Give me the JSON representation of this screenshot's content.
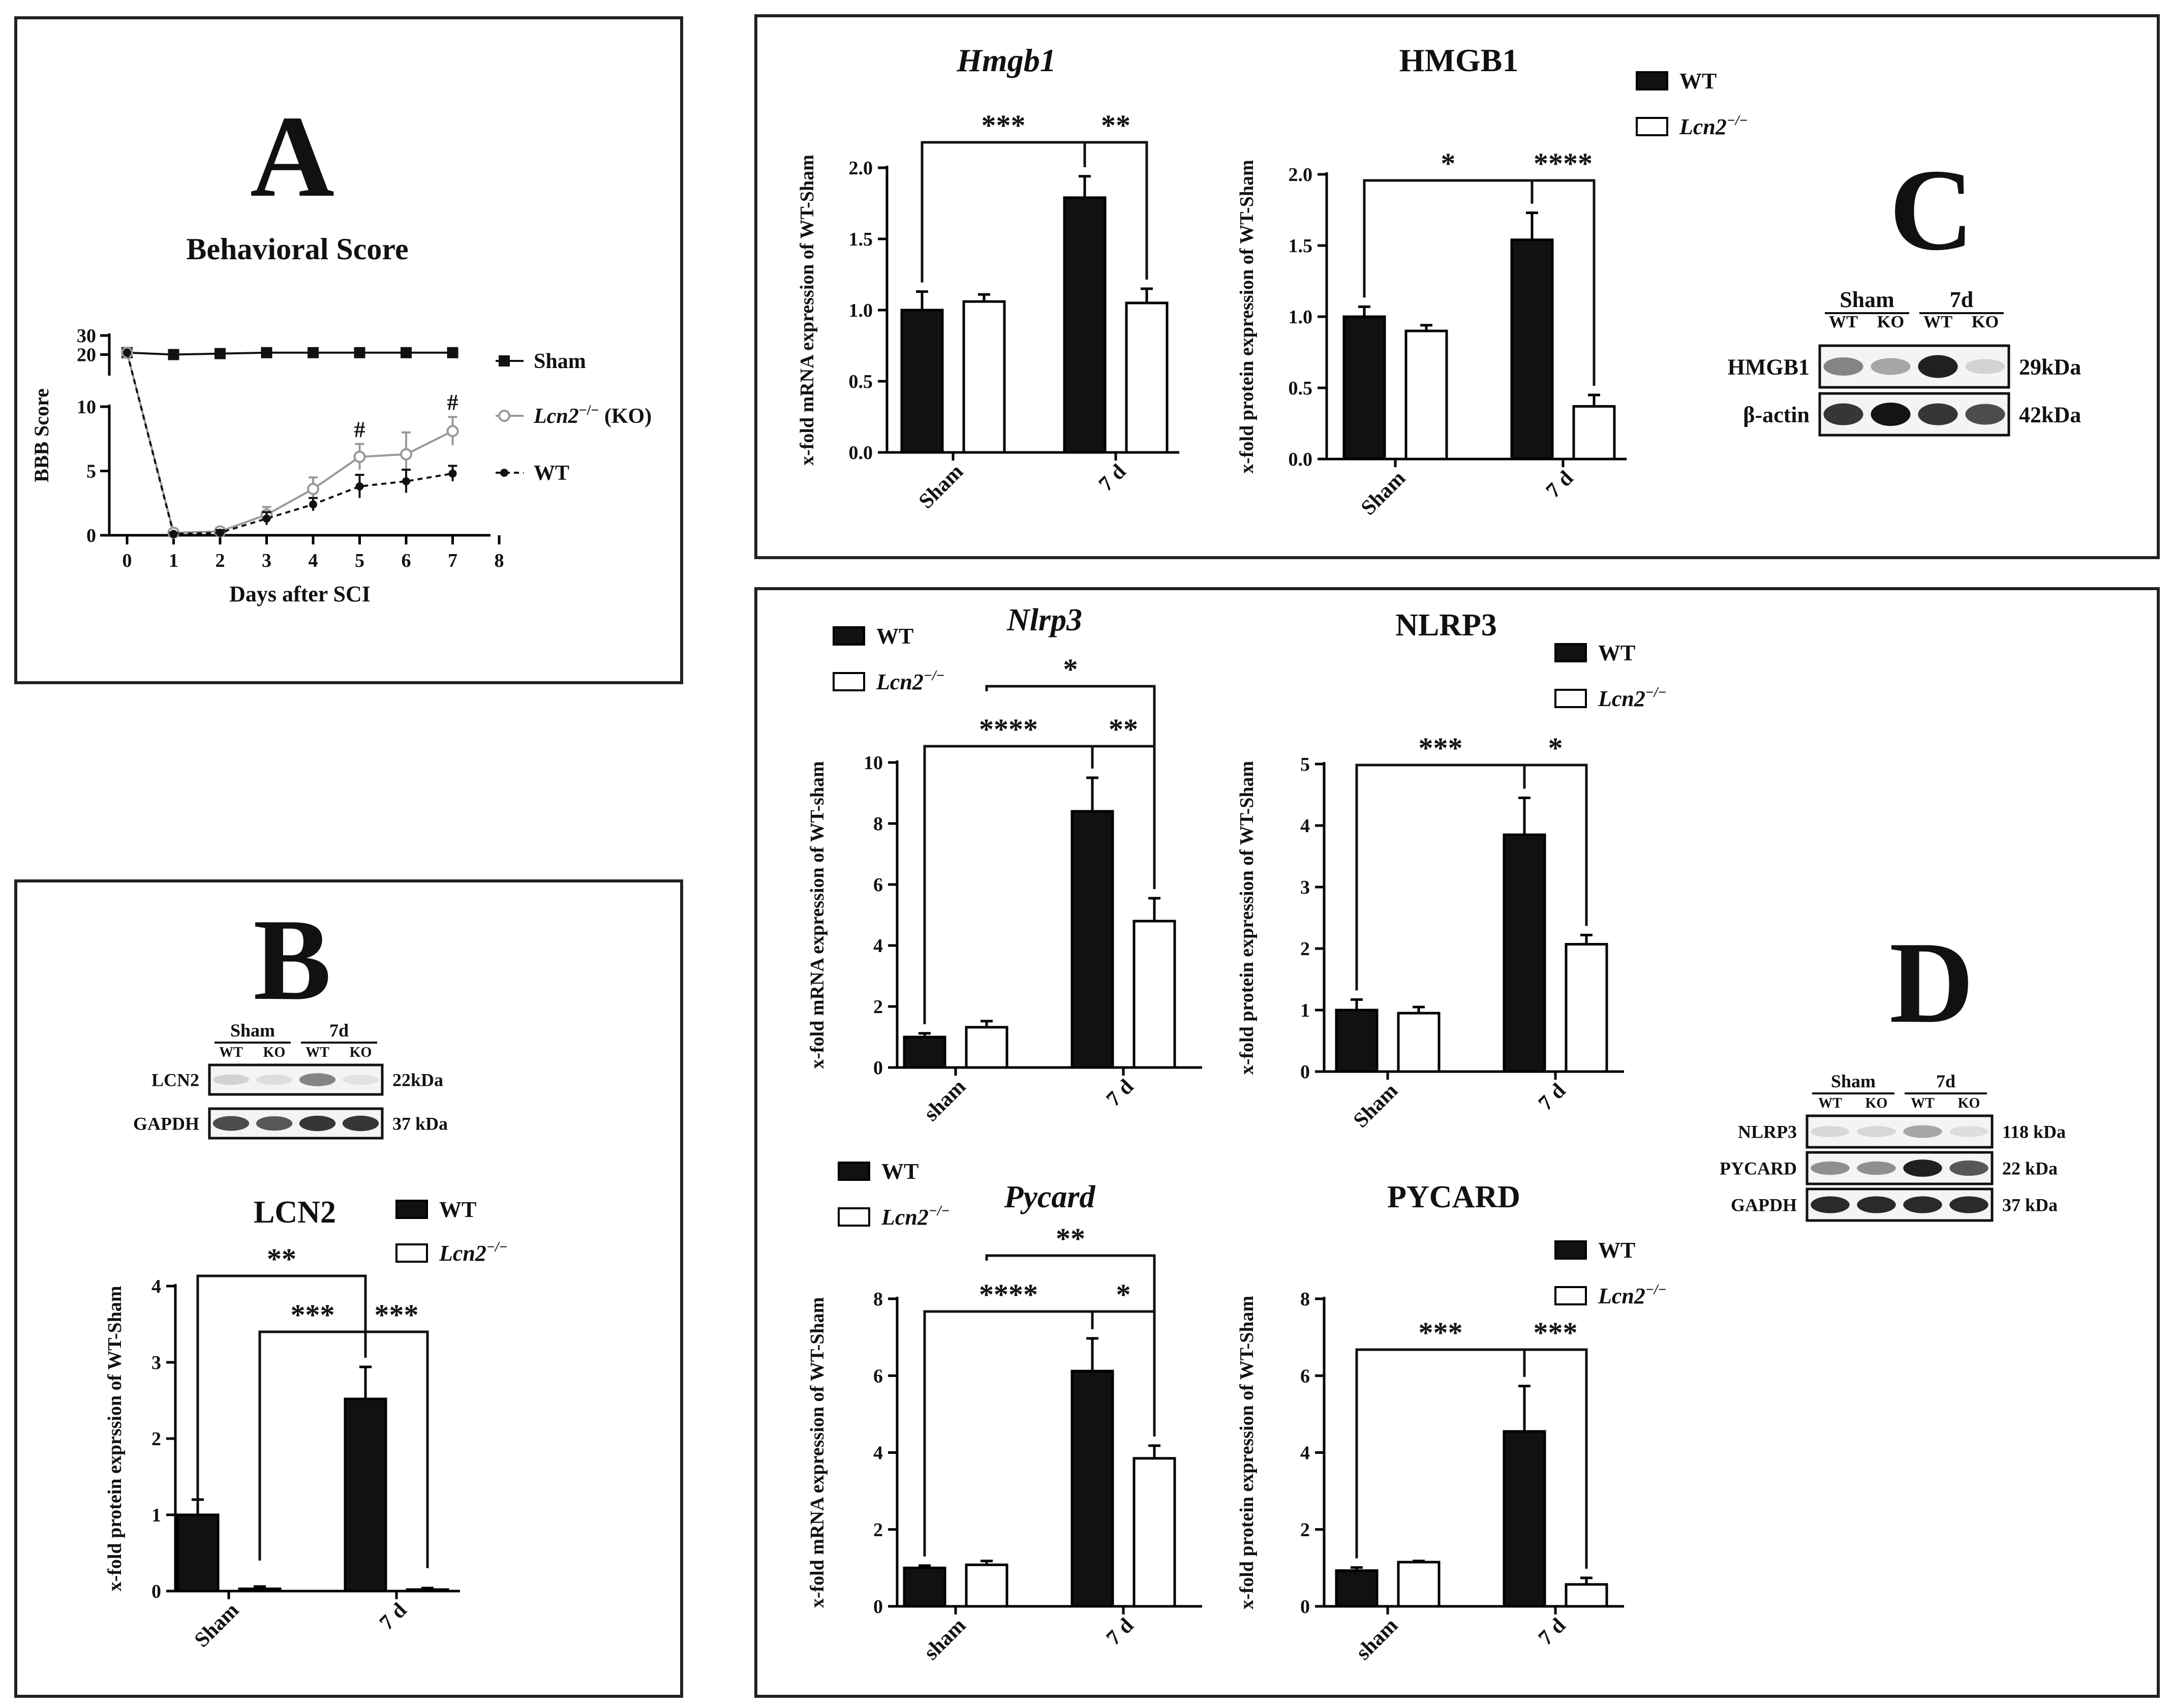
{
  "panels": {
    "A": "A",
    "B": "B",
    "C": "C",
    "D": "D"
  },
  "colors": {
    "wt": "#111111",
    "ko": "#ffffff",
    "ko_line": "#999999"
  },
  "chart_data": [
    {
      "id": "A",
      "type": "line",
      "title": "Behavioral Score",
      "xlabel": "Days after SCI",
      "ylabel": "BBB Score",
      "x": [
        0,
        1,
        2,
        3,
        4,
        5,
        6,
        7
      ],
      "xticks": [
        "0",
        "1",
        "2",
        "3",
        "4",
        "5",
        "6",
        "7",
        "8"
      ],
      "yticks_lower": [
        "0",
        "5",
        "10"
      ],
      "yticks_upper": [
        "20",
        "30"
      ],
      "ylim_lower": [
        0,
        10
      ],
      "ylim_upper": [
        10,
        30
      ],
      "series": [
        {
          "name": "Sham",
          "values": [
            21,
            20,
            20.5,
            21,
            21,
            21,
            21,
            21
          ],
          "err": [
            0,
            0,
            0,
            0,
            0,
            0,
            0,
            0
          ]
        },
        {
          "name": "Lcn2-/- (KO)",
          "legend_main": "Lcn2",
          "legend_sup": "−/−",
          "legend_suffix": " (KO)",
          "values": [
            21,
            0.2,
            0.3,
            1.6,
            3.6,
            6.1,
            6.3,
            8.1
          ],
          "err": [
            0,
            0.2,
            0.3,
            0.6,
            0.9,
            1.0,
            1.7,
            1.1
          ]
        },
        {
          "name": "WT",
          "values": [
            21,
            0.1,
            0.2,
            1.3,
            2.4,
            3.8,
            4.2,
            4.8
          ],
          "err": [
            0,
            0.1,
            0.2,
            0.5,
            0.5,
            0.9,
            0.9,
            0.6
          ]
        }
      ],
      "annotations": [
        "#",
        "#"
      ]
    },
    {
      "id": "B",
      "type": "bar",
      "title": "LCN2",
      "ylabel": "x-fold protein exprssion of WT-Sham",
      "categories": [
        "Sham",
        "7 d"
      ],
      "ylim": [
        0,
        4
      ],
      "yticks": [
        "0",
        "1",
        "2",
        "3",
        "4"
      ],
      "series": [
        {
          "name": "WT",
          "values": [
            1.0,
            2.52
          ],
          "err": [
            0.2,
            0.42
          ]
        },
        {
          "name": "Lcn2-/-",
          "values": [
            0.03,
            0.02
          ],
          "err": [
            0.03,
            0.02
          ]
        }
      ],
      "sig": [
        "**",
        "***",
        "***"
      ]
    },
    {
      "id": "C1",
      "type": "bar",
      "title": "Hmgb1",
      "ylabel": "x-fold mRNA expression of WT-Sham",
      "categories": [
        "Sham",
        "7 d"
      ],
      "ylim": [
        0,
        2.0
      ],
      "yticks": [
        "0.0",
        "0.5",
        "1.0",
        "1.5",
        "2.0"
      ],
      "series": [
        {
          "name": "WT",
          "values": [
            1.0,
            1.79
          ],
          "err": [
            0.13,
            0.15
          ]
        },
        {
          "name": "Lcn2-/-",
          "values": [
            1.06,
            1.05
          ],
          "err": [
            0.05,
            0.1
          ]
        }
      ],
      "sig": [
        "***",
        "**"
      ]
    },
    {
      "id": "C2",
      "type": "bar",
      "title": "HMGB1",
      "ylabel": "x-fold protein expression of WT-Sham",
      "categories": [
        "Sham",
        "7 d"
      ],
      "ylim": [
        0,
        2.0
      ],
      "yticks": [
        "0.0",
        "0.5",
        "1.0",
        "1.5",
        "2.0"
      ],
      "series": [
        {
          "name": "WT",
          "values": [
            1.0,
            1.54
          ],
          "err": [
            0.07,
            0.19
          ]
        },
        {
          "name": "Lcn2-/-",
          "values": [
            0.9,
            0.37
          ],
          "err": [
            0.04,
            0.08
          ]
        }
      ],
      "sig": [
        "*",
        "****"
      ]
    },
    {
      "id": "D1",
      "type": "bar",
      "title": "Nlrp3",
      "ylabel": "x-fold mRNA expression of WT-sham",
      "categories": [
        "sham",
        "7 d"
      ],
      "ylim": [
        0,
        10
      ],
      "yticks": [
        "0",
        "2",
        "4",
        "6",
        "8",
        "10"
      ],
      "series": [
        {
          "name": "WT",
          "values": [
            1.0,
            8.4
          ],
          "err": [
            0.12,
            1.1
          ]
        },
        {
          "name": "Lcn2-/-",
          "values": [
            1.32,
            4.8
          ],
          "err": [
            0.2,
            0.75
          ]
        }
      ],
      "sig": [
        "****",
        "**",
        "*"
      ]
    },
    {
      "id": "D2",
      "type": "bar",
      "title": "NLRP3",
      "ylabel": "x-fold protein expression of WT-Sham",
      "categories": [
        "Sham",
        "7 d"
      ],
      "ylim": [
        0,
        5
      ],
      "yticks": [
        "0",
        "1",
        "2",
        "3",
        "4",
        "5"
      ],
      "series": [
        {
          "name": "WT",
          "values": [
            1.0,
            3.85
          ],
          "err": [
            0.17,
            0.6
          ]
        },
        {
          "name": "Lcn2-/-",
          "values": [
            0.95,
            2.07
          ],
          "err": [
            0.1,
            0.15
          ]
        }
      ],
      "sig": [
        "***",
        "*"
      ]
    },
    {
      "id": "D3",
      "type": "bar",
      "title": "Pycard",
      "ylabel": "x-fold mRNA expression of WT-Sham",
      "categories": [
        "sham",
        "7 d"
      ],
      "ylim": [
        0,
        8
      ],
      "yticks": [
        "0",
        "2",
        "4",
        "6",
        "8"
      ],
      "series": [
        {
          "name": "WT",
          "values": [
            1.0,
            6.12
          ],
          "err": [
            0.06,
            0.85
          ]
        },
        {
          "name": "Lcn2-/-",
          "values": [
            1.08,
            3.85
          ],
          "err": [
            0.1,
            0.33
          ]
        }
      ],
      "sig": [
        "****",
        "*",
        "**"
      ]
    },
    {
      "id": "D4",
      "type": "bar",
      "title": "PYCARD",
      "ylabel": "x-fold protein expression of WT-Sham",
      "categories": [
        "sham",
        "7 d"
      ],
      "ylim": [
        0,
        8
      ],
      "yticks": [
        "0",
        "2",
        "4",
        "6",
        "8"
      ],
      "series": [
        {
          "name": "WT",
          "values": [
            0.93,
            4.55
          ],
          "err": [
            0.08,
            1.18
          ]
        },
        {
          "name": "Lcn2-/-",
          "values": [
            1.15,
            0.57
          ],
          "err": [
            0.03,
            0.17
          ]
        }
      ],
      "sig": [
        "***",
        "***"
      ]
    }
  ],
  "legend": {
    "wt": "WT",
    "ko_main": "Lcn2",
    "ko_sup": "−/−"
  },
  "blots": {
    "B": {
      "groups": [
        "Sham",
        "7d"
      ],
      "lanes": [
        "WT",
        "KO",
        "WT",
        "KO"
      ],
      "rows": [
        {
          "name": "LCN2",
          "size": "22kDa"
        },
        {
          "name": "GAPDH",
          "size": "37 kDa"
        }
      ]
    },
    "C": {
      "groups": [
        "Sham",
        "7d"
      ],
      "lanes": [
        "WT",
        "KO",
        "WT",
        "KO"
      ],
      "rows": [
        {
          "name": "HMGB1",
          "size": "29kDa"
        },
        {
          "name": "β-actin",
          "size": "42kDa"
        }
      ]
    },
    "D": {
      "groups": [
        "Sham",
        "7d"
      ],
      "lanes": [
        "WT",
        "KO",
        "WT",
        "KO"
      ],
      "rows": [
        {
          "name": "NLRP3",
          "size": "118 kDa"
        },
        {
          "name": "PYCARD",
          "size": "22 kDa"
        },
        {
          "name": "GAPDH",
          "size": "37 kDa"
        }
      ]
    }
  }
}
